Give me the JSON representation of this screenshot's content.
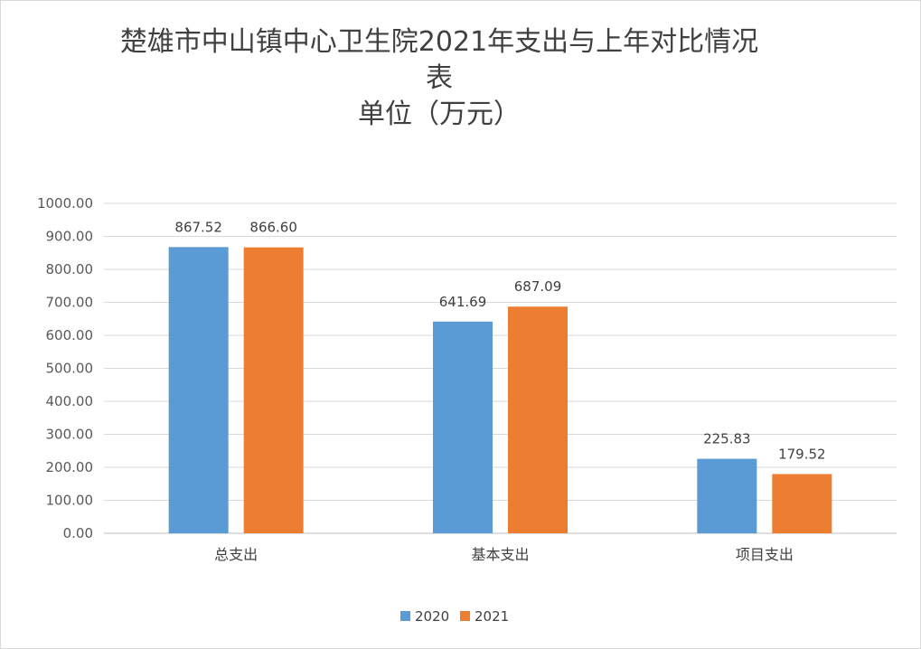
{
  "chart_data": {
    "type": "bar",
    "title_lines": [
      "楚雄市中山镇中心卫生院2021年支出与上年对比情况",
      "表",
      "单位（万元）"
    ],
    "categories": [
      "总支出",
      "基本支出",
      "项目支出"
    ],
    "series": [
      {
        "name": "2020",
        "color": "#5b9bd5",
        "values": [
          867.52,
          641.69,
          225.83
        ],
        "labels": [
          "867.52",
          "641.69",
          "225.83"
        ]
      },
      {
        "name": "2021",
        "color": "#ed7d31",
        "values": [
          866.6,
          687.09,
          179.52
        ],
        "labels": [
          "866.60",
          "687.09",
          "179.52"
        ]
      }
    ],
    "ylim": [
      0,
      1000
    ],
    "y_ticks": [
      "0.00",
      "100.00",
      "200.00",
      "300.00",
      "400.00",
      "500.00",
      "600.00",
      "700.00",
      "800.00",
      "900.00",
      "1000.00"
    ],
    "grid": true,
    "legend_position": "bottom"
  }
}
